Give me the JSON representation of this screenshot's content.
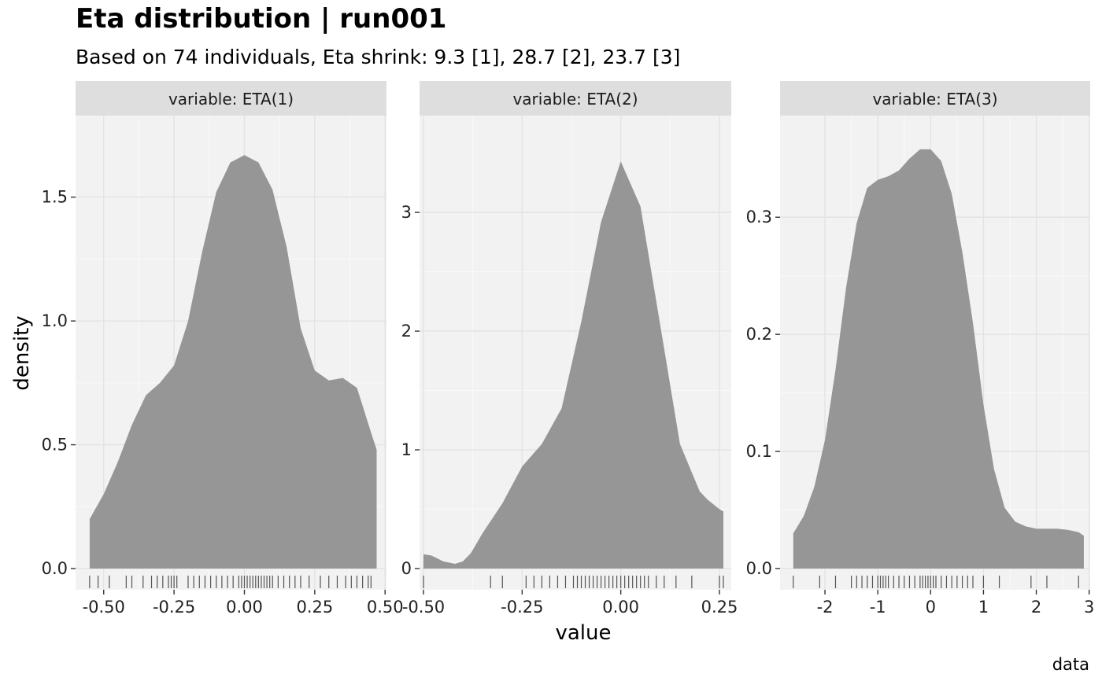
{
  "chart_data": {
    "type": "area",
    "title": "Eta distribution | run001",
    "subtitle": "Based on 74 individuals, Eta shrink: 9.3 [1], 28.7 [2], 23.7 [3]",
    "xlabel": "value",
    "ylabel": "density",
    "caption": "data",
    "grid": true,
    "colors": {
      "fill": "#8c8c8c",
      "panel": "#f2f2f2",
      "strip": "#dedede",
      "rug": "#555555"
    },
    "panels": [
      {
        "strip": "variable: ETA(1)",
        "xlim": [
          -0.6,
          0.505
        ],
        "ylim": [
          -0.05,
          1.75
        ],
        "xticks": [
          -0.5,
          -0.25,
          0.0,
          0.25,
          0.5
        ],
        "xtick_labels": [
          "-0.50",
          "-0.25",
          "0.00",
          "0.25",
          "0.50"
        ],
        "yticks": [
          0.0,
          0.5,
          1.0,
          1.5
        ],
        "ytick_labels": [
          "0.0",
          "0.5",
          "1.0",
          "1.5"
        ],
        "density": {
          "x": [
            -0.55,
            -0.5,
            -0.45,
            -0.4,
            -0.35,
            -0.3,
            -0.25,
            -0.2,
            -0.15,
            -0.1,
            -0.05,
            0.0,
            0.05,
            0.1,
            0.15,
            0.2,
            0.25,
            0.3,
            0.35,
            0.4,
            0.45,
            0.47
          ],
          "y": [
            0.2,
            0.3,
            0.43,
            0.58,
            0.7,
            0.75,
            0.82,
            1.0,
            1.28,
            1.52,
            1.64,
            1.67,
            1.64,
            1.53,
            1.3,
            0.97,
            0.8,
            0.76,
            0.77,
            0.73,
            0.55,
            0.48
          ]
        },
        "rug": [
          -0.55,
          -0.52,
          -0.48,
          -0.42,
          -0.4,
          -0.36,
          -0.33,
          -0.31,
          -0.29,
          -0.27,
          -0.26,
          -0.25,
          -0.24,
          -0.2,
          -0.18,
          -0.16,
          -0.14,
          -0.12,
          -0.1,
          -0.08,
          -0.06,
          -0.04,
          -0.02,
          -0.01,
          0.0,
          0.01,
          0.02,
          0.03,
          0.04,
          0.05,
          0.06,
          0.07,
          0.08,
          0.09,
          0.1,
          0.12,
          0.14,
          0.16,
          0.18,
          0.2,
          0.23,
          0.27,
          0.3,
          0.33,
          0.36,
          0.38,
          0.4,
          0.42,
          0.44,
          0.45
        ]
      },
      {
        "strip": "variable: ETA(2)",
        "xlim": [
          -0.51,
          0.28
        ],
        "ylim": [
          -0.1,
          3.65
        ],
        "xticks": [
          -0.5,
          -0.25,
          0.0,
          0.25
        ],
        "xtick_labels": [
          "-0.50",
          "-0.25",
          "0.00",
          "0.25"
        ],
        "yticks": [
          0,
          1,
          2,
          3
        ],
        "ytick_labels": [
          "0",
          "1",
          "2",
          "3"
        ],
        "density": {
          "x": [
            -0.5,
            -0.48,
            -0.45,
            -0.42,
            -0.4,
            -0.38,
            -0.35,
            -0.3,
            -0.25,
            -0.2,
            -0.15,
            -0.1,
            -0.05,
            0.0,
            0.05,
            0.1,
            0.15,
            0.2,
            0.22,
            0.25,
            0.26
          ],
          "y": [
            0.12,
            0.11,
            0.06,
            0.04,
            0.06,
            0.13,
            0.3,
            0.55,
            0.86,
            1.05,
            1.35,
            2.08,
            2.92,
            3.43,
            3.05,
            2.05,
            1.05,
            0.65,
            0.58,
            0.5,
            0.48
          ]
        },
        "rug": [
          -0.5,
          -0.33,
          -0.3,
          -0.24,
          -0.22,
          -0.2,
          -0.18,
          -0.16,
          -0.14,
          -0.12,
          -0.11,
          -0.1,
          -0.09,
          -0.08,
          -0.07,
          -0.06,
          -0.05,
          -0.04,
          -0.03,
          -0.02,
          -0.01,
          0.0,
          0.01,
          0.02,
          0.03,
          0.04,
          0.05,
          0.06,
          0.07,
          0.09,
          0.11,
          0.14,
          0.18,
          0.25,
          0.26
        ]
      },
      {
        "strip": "variable: ETA(3)",
        "xlim": [
          -2.85,
          3.02
        ],
        "ylim": [
          -0.01,
          0.37
        ],
        "xticks": [
          -2,
          -1,
          0,
          1,
          2,
          3
        ],
        "xtick_labels": [
          "-2",
          "-1",
          "0",
          "1",
          "2",
          "3"
        ],
        "yticks": [
          0.0,
          0.1,
          0.2,
          0.3
        ],
        "ytick_labels": [
          "0.0",
          "0.1",
          "0.2",
          "0.3"
        ],
        "density": {
          "x": [
            -2.6,
            -2.4,
            -2.2,
            -2.0,
            -1.8,
            -1.6,
            -1.4,
            -1.2,
            -1.0,
            -0.8,
            -0.6,
            -0.4,
            -0.2,
            0.0,
            0.2,
            0.4,
            0.6,
            0.8,
            1.0,
            1.2,
            1.4,
            1.6,
            1.8,
            2.0,
            2.2,
            2.4,
            2.6,
            2.8,
            2.9
          ],
          "y": [
            0.03,
            0.045,
            0.07,
            0.11,
            0.17,
            0.24,
            0.295,
            0.325,
            0.332,
            0.335,
            0.34,
            0.35,
            0.358,
            0.358,
            0.348,
            0.32,
            0.27,
            0.21,
            0.14,
            0.085,
            0.052,
            0.04,
            0.036,
            0.034,
            0.034,
            0.034,
            0.033,
            0.031,
            0.028
          ]
        },
        "rug": [
          -2.6,
          -2.1,
          -1.8,
          -1.5,
          -1.4,
          -1.3,
          -1.2,
          -1.1,
          -1.0,
          -0.95,
          -0.9,
          -0.85,
          -0.8,
          -0.7,
          -0.6,
          -0.5,
          -0.4,
          -0.3,
          -0.2,
          -0.15,
          -0.1,
          -0.05,
          0.0,
          0.05,
          0.1,
          0.2,
          0.3,
          0.4,
          0.5,
          0.6,
          0.7,
          0.8,
          1.0,
          1.3,
          1.9,
          2.2,
          2.8
        ]
      }
    ]
  }
}
